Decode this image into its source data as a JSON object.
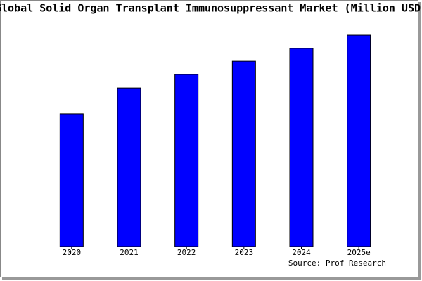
{
  "chart_data": {
    "type": "bar",
    "title": "Global Solid Organ Transplant Immunosuppressant Market (Million USD)",
    "source": "Source: Prof Research",
    "categories": [
      "2020",
      "2021",
      "2022",
      "2023",
      "2024",
      "2025e"
    ],
    "values": [
      62.2,
      74.3,
      80.6,
      86.8,
      92.8,
      99.0
    ],
    "color": "#0000ff",
    "ylim": [
      0,
      100
    ]
  }
}
